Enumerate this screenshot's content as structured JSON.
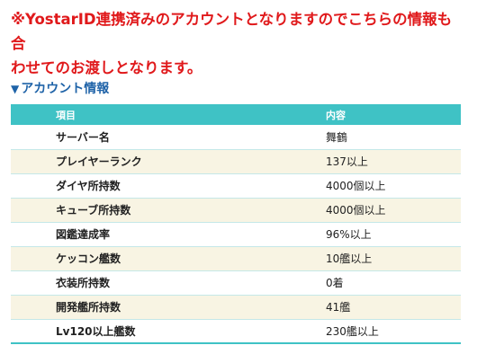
{
  "notice": {
    "line1": "※YostarID連携済みのアカウントとなりますのでこちらの情報も合",
    "line2": "わせてのお渡しとなります。"
  },
  "section": {
    "marker": "▼",
    "title": "アカウント情報"
  },
  "table": {
    "headers": {
      "item": "項目",
      "content": "内容"
    },
    "rows": [
      {
        "label": "サーバー名",
        "value": "舞鶴"
      },
      {
        "label": "プレイヤーランク",
        "value": "137以上"
      },
      {
        "label": "ダイヤ所持数",
        "value": "4000個以上"
      },
      {
        "label": "キューブ所持数",
        "value": "4000個以上"
      },
      {
        "label": "図鑑達成率",
        "value": "96%以上"
      },
      {
        "label": "ケッコン艦数",
        "value": "10艦以上"
      },
      {
        "label": "衣装所持数",
        "value": "0着"
      },
      {
        "label": "開発艦所持数",
        "value": "41艦"
      },
      {
        "label": "Lv120以上艦数",
        "value": "230艦以上"
      }
    ]
  },
  "colors": {
    "notice_red": "#e0191b",
    "heading_blue": "#1f63a8",
    "header_teal": "#3fc2c5",
    "stripe_cream": "#f8f4e3"
  }
}
